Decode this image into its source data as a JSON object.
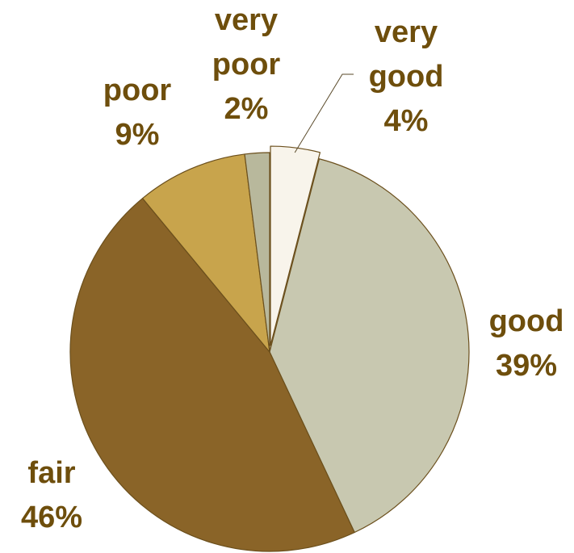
{
  "chart_data": {
    "type": "pie",
    "label_color": "#6e4e0c",
    "outline_color": "#6b4f1c",
    "slices": [
      {
        "category": "very good",
        "label_lines": [
          "very",
          "good"
        ],
        "value": 4,
        "value_label": "4%",
        "color": "#f8f4eb"
      },
      {
        "category": "good",
        "label_lines": [
          "good"
        ],
        "value": 39,
        "value_label": "39%",
        "color": "#c8c8b0"
      },
      {
        "category": "fair",
        "label_lines": [
          "fair"
        ],
        "value": 46,
        "value_label": "46%",
        "color": "#8a6428"
      },
      {
        "category": "poor",
        "label_lines": [
          "poor"
        ],
        "value": 9,
        "value_label": "9%",
        "color": "#c8a44c"
      },
      {
        "category": "very poor",
        "label_lines": [
          "very",
          "poor"
        ],
        "value": 2,
        "value_label": "2%",
        "color": "#b8b89c"
      }
    ]
  }
}
